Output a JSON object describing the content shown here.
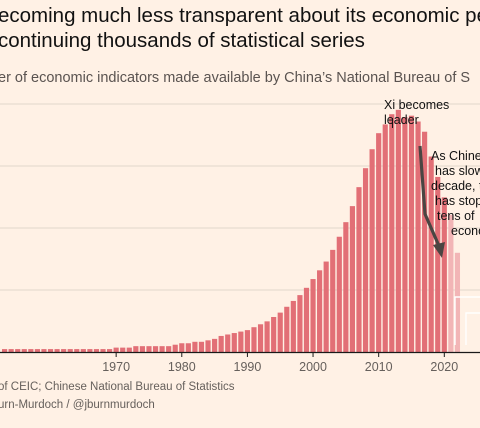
{
  "title_lines": [
    "ecoming much less transparent about its economic per",
    "continuing thousands of statistical series"
  ],
  "subtitle": "er of economic indicators made available by China’s National Bureau of S",
  "annotations": {
    "xi": [
      "Xi becomes",
      "leader"
    ],
    "slow": [
      "As Chine",
      "has slow",
      "decade, t",
      "has stop",
      "tens of",
      "econo"
    ]
  },
  "source": "of CEIC; Chinese National Bureau of Statistics",
  "credit": "urn-Murdoch / @jburnmurdoch",
  "colors": {
    "bar": "#e26f76",
    "bar_faded": "#f2b5b6",
    "grid": "#e2d6cb",
    "axis": "#1a1a1a"
  },
  "chart_data": {
    "type": "bar",
    "x": [
      1953,
      1954,
      1955,
      1956,
      1957,
      1958,
      1959,
      1960,
      1961,
      1962,
      1963,
      1964,
      1965,
      1966,
      1967,
      1968,
      1969,
      1970,
      1971,
      1972,
      1973,
      1974,
      1975,
      1976,
      1977,
      1978,
      1979,
      1980,
      1981,
      1982,
      1983,
      1984,
      1985,
      1986,
      1987,
      1988,
      1989,
      1990,
      1991,
      1992,
      1993,
      1994,
      1995,
      1996,
      1997,
      1998,
      1999,
      2000,
      2001,
      2002,
      2003,
      2004,
      2005,
      2006,
      2007,
      2008,
      2009,
      2010,
      2011,
      2012,
      2013,
      2014,
      2015,
      2016,
      2017,
      2018,
      2019,
      2020,
      2021,
      2022
    ],
    "values": [
      2,
      2,
      2,
      2,
      2,
      2,
      2,
      2,
      2,
      2,
      2,
      2,
      2,
      2,
      2,
      2,
      2,
      3,
      3,
      3,
      4,
      4,
      4,
      4,
      4,
      4,
      5,
      6,
      6,
      7,
      7,
      8,
      9,
      11,
      12,
      13,
      14,
      15,
      17,
      19,
      21,
      24,
      27,
      31,
      35,
      39,
      44,
      50,
      56,
      62,
      70,
      79,
      89,
      100,
      113,
      126,
      139,
      150,
      156,
      163,
      166,
      161,
      162,
      158,
      151,
      134,
      120,
      106,
      94,
      68
    ],
    "faded_years": [
      2021,
      2022
    ],
    "x_ticks": [
      "1970",
      "1980",
      "1990",
      "2000",
      "2010",
      "2020"
    ],
    "xlim": [
      1951,
      2024
    ],
    "ylim": [
      0,
      170
    ],
    "grid_y": [
      0,
      42.5,
      85,
      127.5,
      170
    ],
    "grid": true
  }
}
